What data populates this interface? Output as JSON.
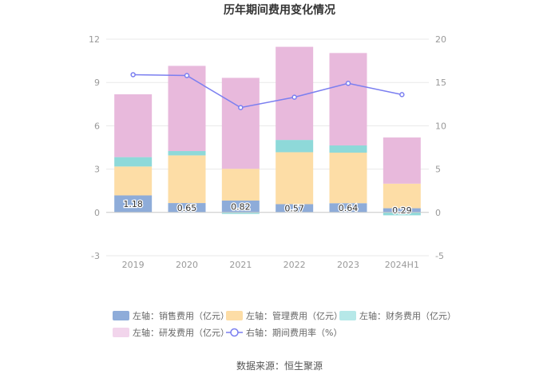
{
  "chart_data": {
    "type": "bar",
    "stacked": true,
    "title": "历年期间费用变化情况",
    "categories": [
      "2019",
      "2020",
      "2021",
      "2022",
      "2023",
      "2024H1"
    ],
    "series": [
      {
        "name": "销售费用（亿元）",
        "axis": "left",
        "color": "#8eacd9",
        "values": [
          1.18,
          0.65,
          0.82,
          0.57,
          0.64,
          0.29
        ],
        "labels": [
          "1.18",
          "0.65",
          "0.82",
          "0.57",
          "0.64",
          "0.29"
        ]
      },
      {
        "name": "管理费用（亿元）",
        "axis": "left",
        "color": "#fddda6",
        "values": [
          2.0,
          3.3,
          2.2,
          3.6,
          3.5,
          1.7
        ]
      },
      {
        "name": "财务费用（亿元）",
        "axis": "left",
        "color": "#8ed9d9",
        "values": [
          0.65,
          0.3,
          -0.1,
          0.85,
          0.5,
          -0.2
        ]
      },
      {
        "name": "研发费用（亿元）",
        "axis": "left",
        "color": "#e8b9dc",
        "values": [
          4.35,
          5.9,
          6.3,
          6.45,
          6.4,
          3.2
        ]
      },
      {
        "name": "期间费用率（%）",
        "axis": "right",
        "type": "line",
        "color": "#7b7ff0",
        "values": [
          15.9,
          15.8,
          12.1,
          13.3,
          14.9,
          13.6
        ]
      }
    ],
    "left_axis": {
      "min": -3,
      "max": 12,
      "ticks": [
        "-3",
        "0",
        "3",
        "6",
        "9",
        "12"
      ]
    },
    "right_axis": {
      "min": -5,
      "max": 20,
      "ticks": [
        "-5",
        "0",
        "5",
        "10",
        "15",
        "20"
      ]
    },
    "legend": {
      "position": "bottom",
      "items": [
        {
          "prefix": "左轴：",
          "label": "销售费用（亿元）",
          "marker": "rect",
          "color": "#8eacd9"
        },
        {
          "prefix": "左轴：",
          "label": "管理费用（亿元）",
          "marker": "rect",
          "color": "#fddda6"
        },
        {
          "prefix": "左轴：",
          "label": "财务费用（亿元）",
          "marker": "rect",
          "color": "#b6e8e8"
        },
        {
          "prefix": "左轴：",
          "label": "研发费用（亿元）",
          "marker": "rect",
          "color": "#f2d5ec"
        },
        {
          "prefix": "右轴：",
          "label": "期间费用率（%）",
          "marker": "line",
          "color": "#7b7ff0"
        }
      ]
    },
    "source": "数据来源：恒生聚源"
  }
}
